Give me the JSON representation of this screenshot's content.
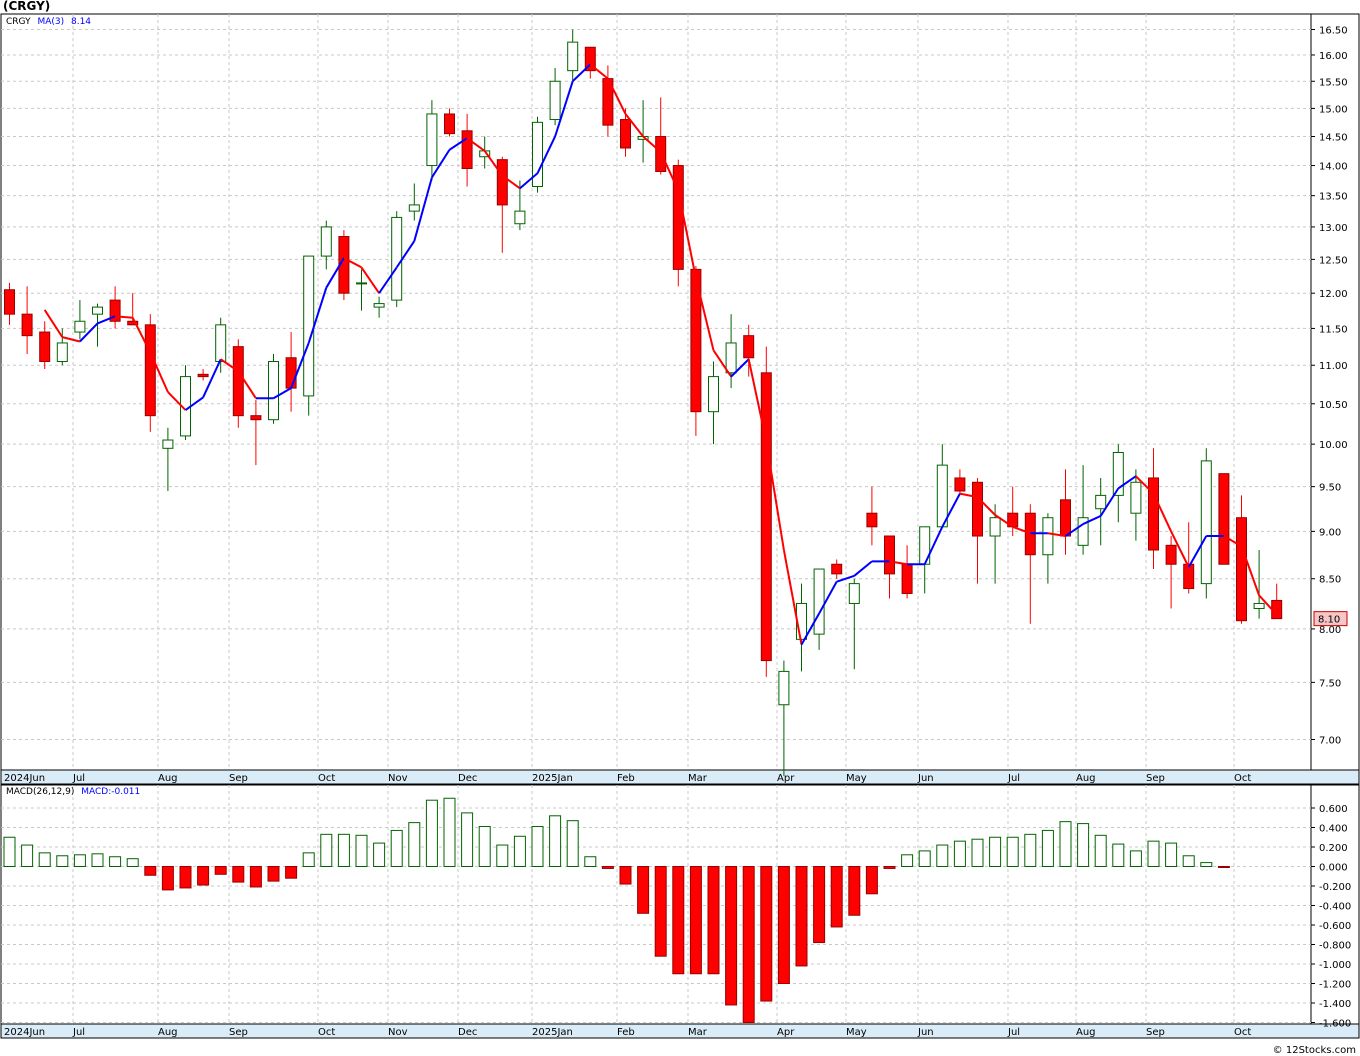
{
  "header": {
    "title": "(CRGY)",
    "credit": "© 12Stocks.com"
  },
  "price_legend": {
    "symbol": "CRGY",
    "ma_label": "MA(3)",
    "ma_value": "8.14"
  },
  "macd_legend": {
    "label": "MACD(26,12,9)",
    "value_label": "MACD:-0.011"
  },
  "last_price_badge": "8.10",
  "colors": {
    "up": "#006400",
    "down": "#ff0000",
    "ma_up": "#0000ff",
    "ma_down": "#ff0000",
    "grid": "#c8c8c8",
    "axis_bar": "#d9ecf7"
  },
  "chart_data": [
    {
      "type": "candlestick",
      "title": "(CRGY)",
      "series_name": "CRGY",
      "ylim": [
        6.75,
        16.75
      ],
      "y_scale": "log",
      "y_ticks": [
        "7.00",
        "7.50",
        "8.00",
        "8.50",
        "9.00",
        "9.50",
        "10.00",
        "10.50",
        "11.00",
        "11.50",
        "12.00",
        "12.50",
        "13.00",
        "13.50",
        "14.00",
        "14.50",
        "15.00",
        "15.50",
        "16.00",
        "16.50"
      ],
      "x_labels": [
        "2024Jun",
        "Jul",
        "Aug",
        "Sep",
        "Oct",
        "Nov",
        "Dec",
        "2025Jan",
        "Feb",
        "Mar",
        "Apr",
        "May",
        "Jun",
        "Jul",
        "Aug",
        "Sep",
        "Oct"
      ],
      "last_price": "8.10",
      "ma": {
        "label": "MA(3)",
        "value": 8.14
      },
      "candles": [
        {
          "o": 12.05,
          "h": 12.15,
          "l": 11.55,
          "c": 11.7
        },
        {
          "o": 11.7,
          "h": 12.1,
          "l": 11.15,
          "c": 11.4
        },
        {
          "o": 11.45,
          "h": 11.6,
          "l": 10.95,
          "c": 11.05
        },
        {
          "o": 11.05,
          "h": 11.5,
          "l": 11.0,
          "c": 11.3
        },
        {
          "o": 11.45,
          "h": 11.9,
          "l": 11.35,
          "c": 11.6
        },
        {
          "o": 11.7,
          "h": 11.85,
          "l": 11.25,
          "c": 11.8
        },
        {
          "o": 11.9,
          "h": 12.1,
          "l": 11.5,
          "c": 11.6
        },
        {
          "o": 11.6,
          "h": 12.0,
          "l": 11.55,
          "c": 11.55
        },
        {
          "o": 11.55,
          "h": 11.7,
          "l": 10.15,
          "c": 10.35
        },
        {
          "o": 9.95,
          "h": 10.2,
          "l": 9.45,
          "c": 10.05
        },
        {
          "o": 10.1,
          "h": 11.0,
          "l": 10.05,
          "c": 10.85
        },
        {
          "o": 10.88,
          "h": 10.95,
          "l": 10.8,
          "c": 10.85
        },
        {
          "o": 11.05,
          "h": 11.65,
          "l": 10.9,
          "c": 11.55
        },
        {
          "o": 11.25,
          "h": 11.35,
          "l": 10.2,
          "c": 10.35
        },
        {
          "o": 10.35,
          "h": 10.55,
          "l": 9.75,
          "c": 10.3
        },
        {
          "o": 10.3,
          "h": 11.15,
          "l": 10.25,
          "c": 11.05
        },
        {
          "o": 11.1,
          "h": 11.45,
          "l": 10.4,
          "c": 10.7
        },
        {
          "o": 10.6,
          "h": 12.55,
          "l": 10.35,
          "c": 12.55
        },
        {
          "o": 12.55,
          "h": 13.1,
          "l": 12.35,
          "c": 13.0
        },
        {
          "o": 12.85,
          "h": 12.95,
          "l": 11.9,
          "c": 12.0
        },
        {
          "o": 12.15,
          "h": 12.35,
          "l": 11.75,
          "c": 12.15
        },
        {
          "o": 11.8,
          "h": 11.95,
          "l": 11.65,
          "c": 11.85
        },
        {
          "o": 11.9,
          "h": 13.25,
          "l": 11.8,
          "c": 13.15
        },
        {
          "o": 13.25,
          "h": 13.7,
          "l": 13.1,
          "c": 13.35
        },
        {
          "o": 14.0,
          "h": 15.15,
          "l": 13.75,
          "c": 14.9
        },
        {
          "o": 14.9,
          "h": 15.0,
          "l": 14.5,
          "c": 14.55
        },
        {
          "o": 14.6,
          "h": 14.9,
          "l": 13.65,
          "c": 13.95
        },
        {
          "o": 14.15,
          "h": 14.5,
          "l": 13.95,
          "c": 14.25
        },
        {
          "o": 14.1,
          "h": 14.15,
          "l": 12.6,
          "c": 13.35
        },
        {
          "o": 13.05,
          "h": 13.75,
          "l": 12.95,
          "c": 13.25
        },
        {
          "o": 13.65,
          "h": 14.85,
          "l": 13.55,
          "c": 14.75
        },
        {
          "o": 14.8,
          "h": 15.75,
          "l": 14.7,
          "c": 15.5
        },
        {
          "o": 15.7,
          "h": 16.5,
          "l": 15.5,
          "c": 16.25
        },
        {
          "o": 16.15,
          "h": 16.15,
          "l": 15.55,
          "c": 15.7
        },
        {
          "o": 15.55,
          "h": 15.8,
          "l": 14.5,
          "c": 14.7
        },
        {
          "o": 14.8,
          "h": 15.0,
          "l": 14.15,
          "c": 14.3
        },
        {
          "o": 14.45,
          "h": 15.15,
          "l": 14.05,
          "c": 14.5
        },
        {
          "o": 14.5,
          "h": 15.2,
          "l": 13.85,
          "c": 13.9
        },
        {
          "o": 14.0,
          "h": 14.1,
          "l": 12.1,
          "c": 12.35
        },
        {
          "o": 12.35,
          "h": 12.4,
          "l": 10.1,
          "c": 10.4
        },
        {
          "o": 10.4,
          "h": 11.05,
          "l": 10.0,
          "c": 10.85
        },
        {
          "o": 10.9,
          "h": 11.7,
          "l": 10.7,
          "c": 11.3
        },
        {
          "o": 11.4,
          "h": 11.55,
          "l": 10.85,
          "c": 11.1
        },
        {
          "o": 10.9,
          "h": 11.25,
          "l": 7.55,
          "c": 7.7
        },
        {
          "o": 7.3,
          "h": 7.7,
          "l": 6.7,
          "c": 7.6
        },
        {
          "o": 7.9,
          "h": 8.45,
          "l": 7.6,
          "c": 8.25
        },
        {
          "o": 7.95,
          "h": 8.6,
          "l": 7.8,
          "c": 8.6
        },
        {
          "o": 8.65,
          "h": 8.7,
          "l": 8.5,
          "c": 8.55
        },
        {
          "o": 8.25,
          "h": 8.5,
          "l": 7.62,
          "c": 8.45
        },
        {
          "o": 9.2,
          "h": 9.5,
          "l": 8.85,
          "c": 9.05
        },
        {
          "o": 8.95,
          "h": 8.95,
          "l": 8.3,
          "c": 8.55
        },
        {
          "o": 8.65,
          "h": 8.85,
          "l": 8.3,
          "c": 8.35
        },
        {
          "o": 8.65,
          "h": 9.0,
          "l": 8.35,
          "c": 9.05
        },
        {
          "o": 9.05,
          "h": 10.0,
          "l": 9.05,
          "c": 9.75
        },
        {
          "o": 9.6,
          "h": 9.7,
          "l": 9.4,
          "c": 9.45
        },
        {
          "o": 9.55,
          "h": 9.6,
          "l": 8.45,
          "c": 8.95
        },
        {
          "o": 8.95,
          "h": 9.3,
          "l": 8.45,
          "c": 9.15
        },
        {
          "o": 9.2,
          "h": 9.5,
          "l": 8.95,
          "c": 9.05
        },
        {
          "o": 9.2,
          "h": 9.3,
          "l": 8.05,
          "c": 8.75
        },
        {
          "o": 8.75,
          "h": 9.2,
          "l": 8.45,
          "c": 9.15
        },
        {
          "o": 9.35,
          "h": 9.7,
          "l": 8.75,
          "c": 8.95
        },
        {
          "o": 8.85,
          "h": 9.75,
          "l": 8.75,
          "c": 9.15
        },
        {
          "o": 9.25,
          "h": 9.6,
          "l": 8.85,
          "c": 9.4
        },
        {
          "o": 9.4,
          "h": 10.0,
          "l": 9.1,
          "c": 9.9
        },
        {
          "o": 9.2,
          "h": 9.7,
          "l": 8.9,
          "c": 9.55
        },
        {
          "o": 9.6,
          "h": 9.95,
          "l": 8.6,
          "c": 8.8
        },
        {
          "o": 8.85,
          "h": 8.95,
          "l": 8.2,
          "c": 8.65
        },
        {
          "o": 8.65,
          "h": 9.1,
          "l": 8.35,
          "c": 8.4
        },
        {
          "o": 8.45,
          "h": 9.95,
          "l": 8.3,
          "c": 9.8
        },
        {
          "o": 9.65,
          "h": 9.65,
          "l": 8.65,
          "c": 8.65
        },
        {
          "o": 9.15,
          "h": 9.4,
          "l": 8.05,
          "c": 8.08
        },
        {
          "o": 8.2,
          "h": 8.8,
          "l": 8.1,
          "c": 8.25
        },
        {
          "o": 8.28,
          "h": 8.45,
          "l": 8.1,
          "c": 8.1
        }
      ],
      "ma_values": [
        null,
        null,
        11.76,
        11.38,
        11.32,
        11.57,
        11.67,
        11.65,
        11.17,
        10.65,
        10.42,
        10.58,
        11.08,
        10.92,
        10.57,
        10.57,
        10.7,
        11.3,
        12.08,
        12.52,
        12.38,
        12.0,
        12.38,
        12.78,
        13.8,
        14.27,
        14.47,
        14.25,
        13.83,
        13.62,
        13.87,
        14.5,
        15.5,
        15.82,
        15.55,
        14.9,
        14.5,
        14.23,
        13.58,
        12.22,
        11.2,
        10.85,
        11.08,
        10.03,
        8.8,
        7.85,
        8.15,
        8.47,
        8.53,
        8.68,
        8.68,
        8.65,
        8.65,
        9.05,
        9.42,
        9.38,
        9.18,
        9.05,
        8.98,
        8.98,
        8.95,
        9.08,
        9.17,
        9.48,
        9.62,
        9.42,
        9.0,
        8.62,
        8.95,
        8.95,
        8.84,
        8.33,
        8.14
      ]
    },
    {
      "type": "bar",
      "title": "MACD(26,12,9)",
      "series_name": "MACD",
      "value_label": "MACD:-0.011",
      "ylim": [
        -1.65,
        0.65
      ],
      "y_ticks": [
        "0.600",
        "0.400",
        "0.200",
        "0.000",
        "-0.200",
        "-0.400",
        "-0.600",
        "-0.800",
        "-1.000",
        "-1.200",
        "-1.400",
        "-1.600"
      ],
      "x_labels": [
        "2024Jun",
        "Jul",
        "Aug",
        "Sep",
        "Oct",
        "Nov",
        "Dec",
        "2025Jan",
        "Feb",
        "Mar",
        "Apr",
        "May",
        "Jun",
        "Jul",
        "Aug",
        "Sep",
        "Oct"
      ],
      "values": [
        0.3,
        0.22,
        0.14,
        0.11,
        0.12,
        0.13,
        0.1,
        0.08,
        -0.09,
        -0.24,
        -0.22,
        -0.19,
        -0.08,
        -0.16,
        -0.21,
        -0.15,
        -0.12,
        0.14,
        0.33,
        0.33,
        0.32,
        0.24,
        0.37,
        0.45,
        0.68,
        0.7,
        0.55,
        0.41,
        0.22,
        0.31,
        0.41,
        0.52,
        0.47,
        0.1,
        -0.02,
        -0.18,
        -0.48,
        -0.92,
        -1.1,
        -1.1,
        -1.1,
        -1.42,
        -1.6,
        -1.38,
        -1.2,
        -1.02,
        -0.78,
        -0.62,
        -0.5,
        -0.28,
        -0.02,
        0.12,
        0.16,
        0.22,
        0.26,
        0.28,
        0.3,
        0.3,
        0.33,
        0.37,
        0.46,
        0.44,
        0.32,
        0.23,
        0.16,
        0.26,
        0.24,
        0.11,
        0.04,
        -0.01
      ]
    }
  ]
}
